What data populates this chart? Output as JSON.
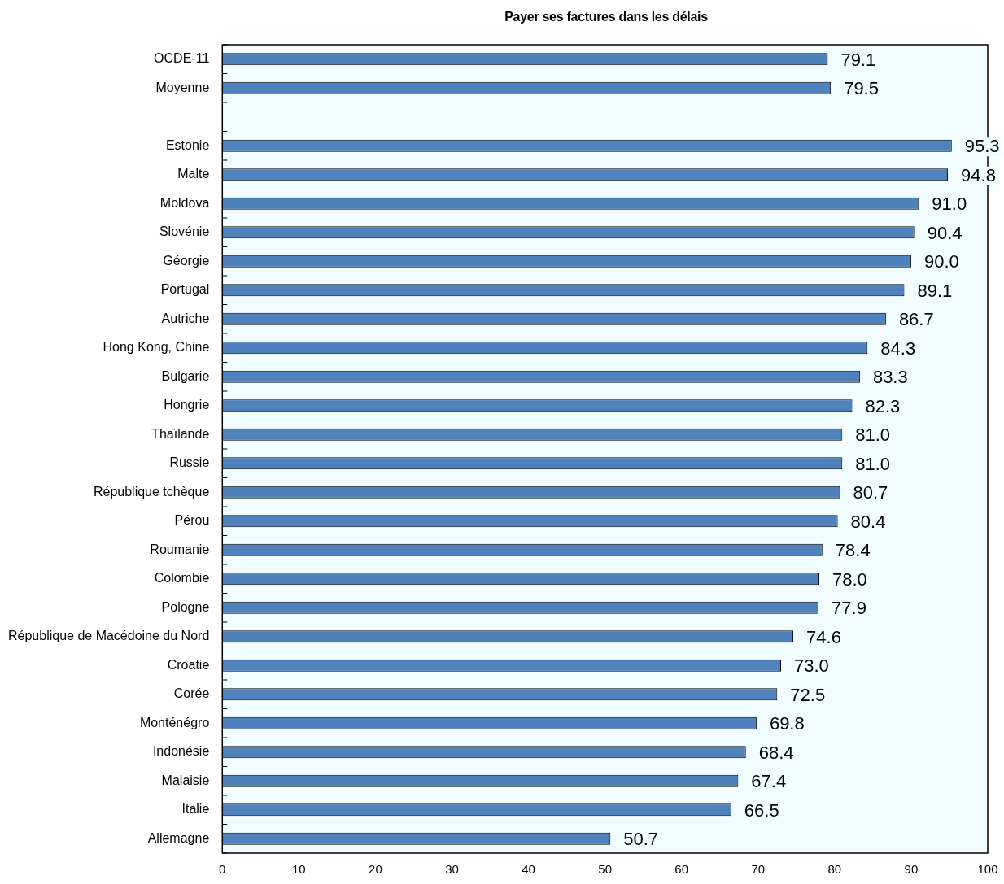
{
  "chart_data": {
    "type": "bar",
    "orientation": "horizontal",
    "title": "Payer ses factures dans les délais",
    "categories": [
      "OCDE-11",
      "Moyenne",
      null,
      "Estonie",
      "Malte",
      "Moldova",
      "Slovénie",
      "Géorgie",
      "Portugal",
      "Autriche",
      "Hong Kong, Chine",
      "Bulgarie",
      "Hongrie",
      "Thaïlande",
      "Russie",
      "République tchèque",
      "Pérou",
      "Roumanie",
      "Colombie",
      "Pologne",
      "République de Macédoine du Nord",
      "Croatie",
      "Corée",
      "Monténégro",
      "Indonésie",
      "Malaisie",
      "Italie",
      "Allemagne"
    ],
    "values": [
      79.1,
      79.5,
      null,
      95.3,
      94.8,
      91.0,
      90.4,
      90.0,
      89.1,
      86.7,
      84.3,
      83.3,
      82.3,
      81.0,
      81.0,
      80.7,
      80.4,
      78.4,
      78.0,
      77.9,
      74.6,
      73.0,
      72.5,
      69.8,
      68.4,
      67.4,
      66.5,
      50.7
    ],
    "value_labels": [
      "79.1",
      "79.5",
      null,
      "95.3",
      "94.8",
      "91.0",
      "90.4",
      "90.0",
      "89.1",
      "86.7",
      "84.3",
      "83.3",
      "82.3",
      "81.0",
      "81.0",
      "80.7",
      "80.4",
      "78.4",
      "78.0",
      "77.9",
      "74.6",
      "73.0",
      "72.5",
      "69.8",
      "68.4",
      "67.4",
      "66.5",
      "50.7"
    ],
    "color": "#4f81bd",
    "xlim": [
      0,
      100
    ],
    "xticks": [
      0,
      10,
      20,
      30,
      40,
      50,
      60,
      70,
      80,
      90,
      100
    ]
  }
}
